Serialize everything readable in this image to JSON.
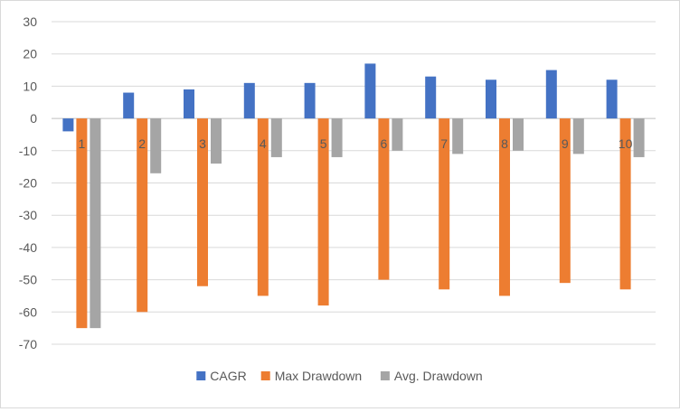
{
  "chart_data": {
    "type": "bar",
    "title": "",
    "xlabel": "",
    "ylabel": "",
    "ylim": [
      -70,
      30
    ],
    "ytick_step": 10,
    "grid": true,
    "legend_position": "bottom",
    "categories": [
      "1",
      "2",
      "3",
      "4",
      "5",
      "6",
      "7",
      "8",
      "9",
      "10"
    ],
    "series": [
      {
        "name": "CAGR",
        "color": "#4472c4",
        "values": [
          -4,
          8,
          9,
          11,
          11,
          17,
          13,
          12,
          15,
          12
        ]
      },
      {
        "name": "Max Drawdown",
        "color": "#ed7d31",
        "values": [
          -65,
          -60,
          -52,
          -55,
          -58,
          -50,
          -53,
          -55,
          -51,
          -53
        ]
      },
      {
        "name": "Avg. Drawdown",
        "color": "#a5a5a5",
        "values": [
          -65,
          -17,
          -14,
          -12,
          -12,
          -10,
          -11,
          -10,
          -11,
          -12
        ]
      }
    ]
  }
}
